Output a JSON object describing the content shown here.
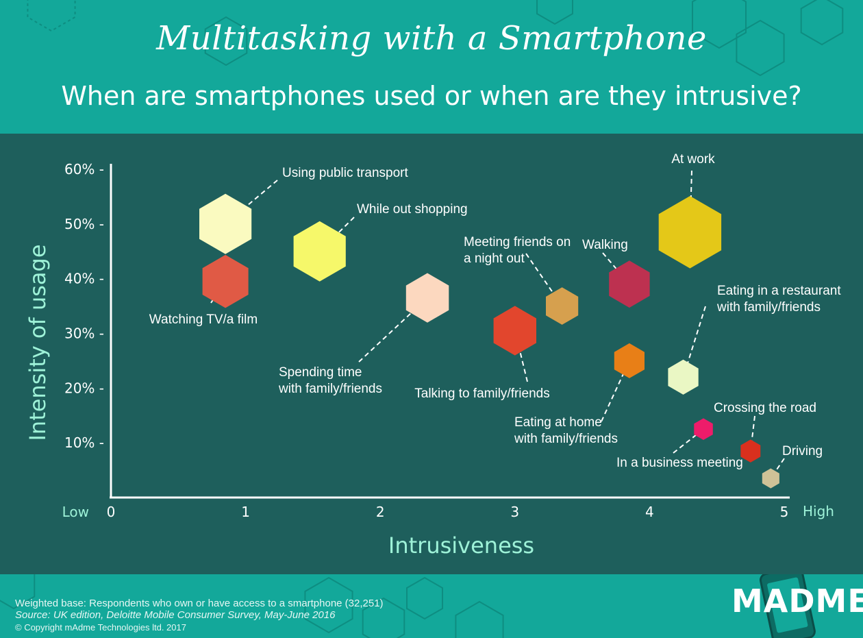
{
  "header": {
    "title": "Multitasking with a Smartphone",
    "subtitle": "When are smartphones used or when are they intrusive?"
  },
  "footer": {
    "base": "Weighted base: Respondents who own or have access to a smartphone (32,251)",
    "source": "Source: UK edition, Deloitte Mobile Consumer Survey, May-June 2016",
    "copyright": "© Copyright mAdme Technologies ltd. 2017",
    "logo": "MADME"
  },
  "colors": {
    "header_bg": "#13a89a",
    "panel_bg": "#1e5f5c",
    "axis_text": "#9ef2d8"
  },
  "chart_data": {
    "type": "scatter",
    "title": "Multitasking with a Smartphone",
    "subtitle": "When are smartphones used or when are they intrusive?",
    "xlabel": "Intrusiveness",
    "ylabel": "Intensity of usage",
    "xlim": [
      0,
      5
    ],
    "ylim": [
      0,
      60
    ],
    "x_ticks": [
      "0",
      "1",
      "2",
      "3",
      "4",
      "5"
    ],
    "x_low_label": "Low",
    "x_high_label": "High",
    "y_ticks": [
      "10% -",
      "20% -",
      "30% -",
      "40% -",
      "50% -",
      "60% -"
    ],
    "y_tick_values": [
      10,
      20,
      30,
      40,
      50,
      60
    ],
    "grid": false,
    "legend": "none",
    "points": [
      {
        "label": "Using public transport",
        "x": 0.85,
        "y": 50,
        "size": 1.0,
        "color": "#fafac0",
        "label_lines": [
          "Using public transport"
        ]
      },
      {
        "label": "Watching TV/a film",
        "x": 0.85,
        "y": 39.5,
        "size": 0.88,
        "color": "#e05a45",
        "label_lines": [
          "Watching TV/a film"
        ]
      },
      {
        "label": "While out shopping",
        "x": 1.55,
        "y": 45,
        "size": 1.0,
        "color": "#f6f86a",
        "label_lines": [
          "While out shopping"
        ]
      },
      {
        "label": "Spending time with family/friends",
        "x": 2.35,
        "y": 36.5,
        "size": 0.82,
        "color": "#fcd8bf",
        "label_lines": [
          "Spending time",
          "with family/friends"
        ]
      },
      {
        "label": "Talking to family/friends",
        "x": 3.0,
        "y": 30.5,
        "size": 0.82,
        "color": "#e2462d",
        "label_lines": [
          "Talking to family/friends"
        ]
      },
      {
        "label": "Meeting friends on a night out",
        "x": 3.35,
        "y": 35,
        "size": 0.62,
        "color": "#d6a04e",
        "label_lines": [
          "Meeting friends on",
          "a night out"
        ]
      },
      {
        "label": "Walking",
        "x": 3.85,
        "y": 39,
        "size": 0.78,
        "color": "#bd3150",
        "label_lines": [
          "Walking"
        ]
      },
      {
        "label": "At work",
        "x": 4.3,
        "y": 48.5,
        "size": 1.2,
        "color": "#e4c818",
        "label_lines": [
          "At work"
        ]
      },
      {
        "label": "Eating at home with family/friends",
        "x": 3.85,
        "y": 25,
        "size": 0.58,
        "color": "#e87f17",
        "label_lines": [
          "Eating at home",
          "with family/friends"
        ]
      },
      {
        "label": "Eating in a restaurant with family/friends",
        "x": 4.25,
        "y": 22,
        "size": 0.58,
        "color": "#eaf7c4",
        "label_lines": [
          "Eating in a restaurant",
          "with family/friends"
        ]
      },
      {
        "label": "In a business meeting",
        "x": 4.4,
        "y": 12.5,
        "size": 0.36,
        "color": "#ee1c6a",
        "label_lines": [
          "In a business meeting"
        ]
      },
      {
        "label": "Crossing the road",
        "x": 4.75,
        "y": 8.5,
        "size": 0.38,
        "color": "#d9301e",
        "label_lines": [
          "Crossing the road"
        ]
      },
      {
        "label": "Driving",
        "x": 4.9,
        "y": 3.5,
        "size": 0.33,
        "color": "#cfc297",
        "label_lines": [
          "Driving"
        ]
      }
    ]
  }
}
